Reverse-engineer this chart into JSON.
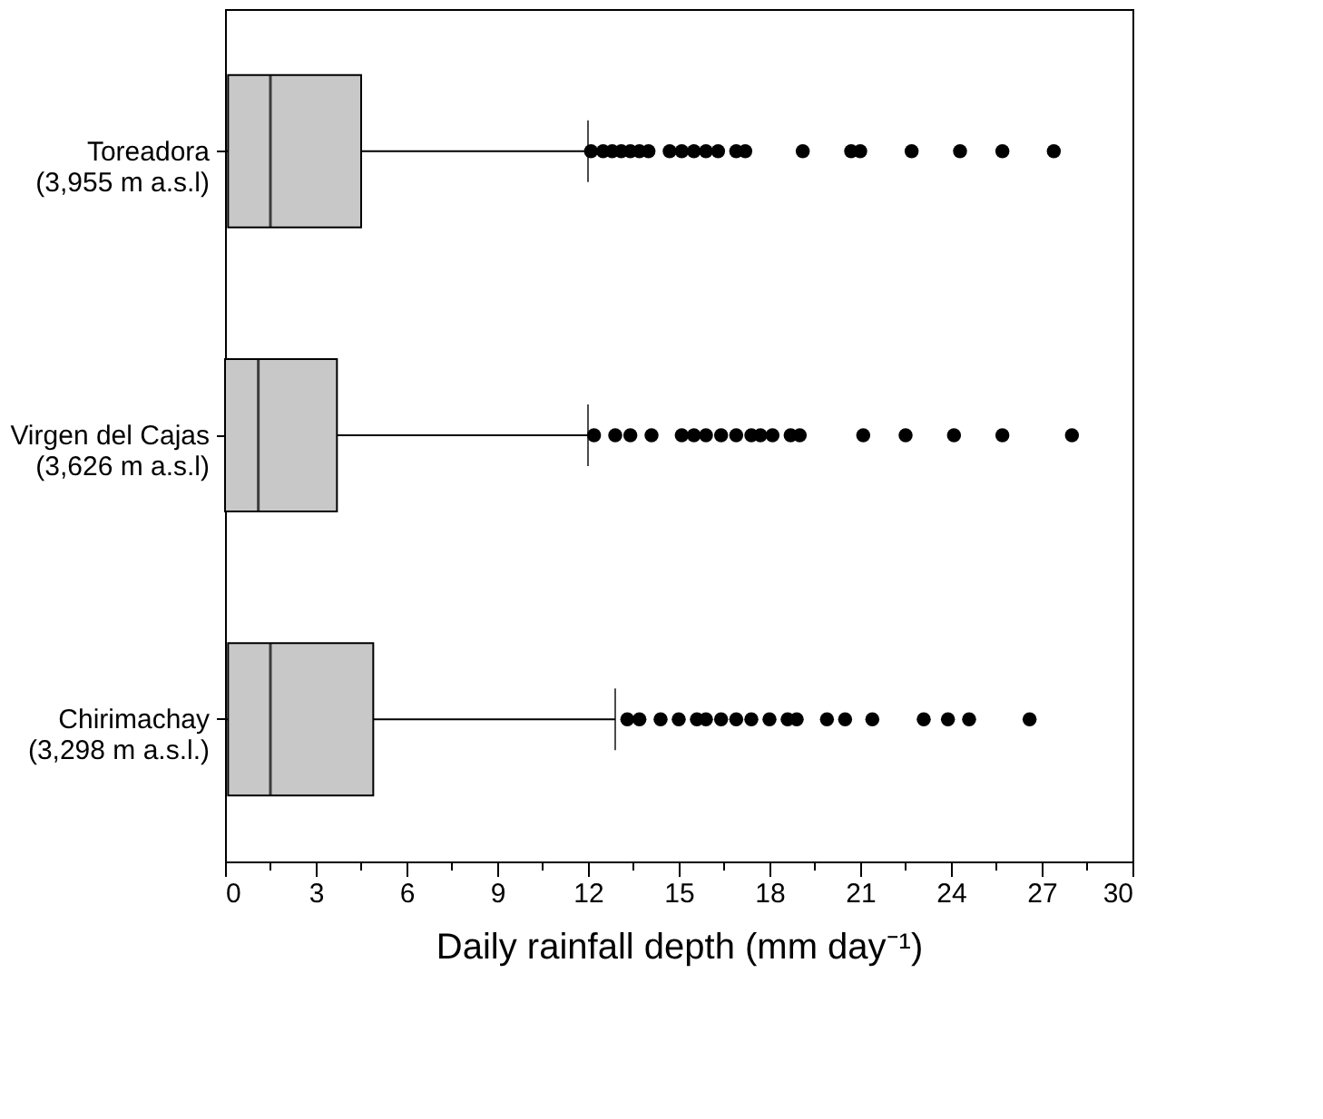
{
  "chart_data": {
    "type": "box",
    "categories": [
      "Toreadora\n(3,955 m a.s.l)",
      "Virgen del Cajas\n(3,626 m a.s.l)",
      "Chirimachay\n(3,298 m a.s.l.)"
    ],
    "orientation": "horizontal",
    "xlabel": "Daily rainfall depth (mm day⁻¹)",
    "boxes": [
      {
        "low": 0,
        "q1": 0.1,
        "median": 1.5,
        "q3": 4.5,
        "high": 12.0,
        "outliers": [
          12.1,
          12.5,
          12.8,
          13.1,
          13.4,
          13.7,
          14.0,
          14.7,
          15.1,
          15.5,
          15.9,
          16.3,
          16.9,
          17.2,
          19.1,
          20.7,
          21.0,
          22.7,
          24.3,
          25.7,
          27.4
        ]
      },
      {
        "low": 0,
        "q1": 0.0,
        "median": 1.1,
        "q3": 3.7,
        "high": 12.0,
        "outliers": [
          12.2,
          12.9,
          13.4,
          14.1,
          15.1,
          15.5,
          15.9,
          16.4,
          16.9,
          17.4,
          17.7,
          18.1,
          18.7,
          19.0,
          21.1,
          22.5,
          24.1,
          25.7,
          28.0
        ]
      },
      {
        "low": 0,
        "q1": 0.1,
        "median": 1.5,
        "q3": 4.9,
        "high": 12.9,
        "outliers": [
          13.3,
          13.7,
          14.4,
          15.0,
          15.6,
          15.9,
          16.4,
          16.9,
          17.4,
          18.0,
          18.6,
          18.9,
          19.9,
          20.5,
          21.4,
          23.1,
          23.9,
          24.6,
          26.6
        ]
      }
    ],
    "color": "#c8c8c8",
    "xlim": [
      0,
      30
    ],
    "xticks": [
      0,
      {
        "value": 1.5,
        "label": null
      },
      3,
      {
        "value": 4.5,
        "label": null
      },
      6,
      {
        "value": 7.5,
        "label": null
      },
      9,
      {
        "value": 10.5,
        "label": null
      },
      12,
      {
        "value": 13.5,
        "label": null
      },
      15,
      {
        "value": 16.5,
        "label": null
      },
      18,
      {
        "value": 19.5,
        "label": null
      },
      21,
      {
        "value": 22.5,
        "label": null
      },
      24,
      {
        "value": 25.5,
        "label": null
      },
      27,
      {
        "value": 28.5,
        "label": null
      },
      30
    ],
    "grid": false
  }
}
